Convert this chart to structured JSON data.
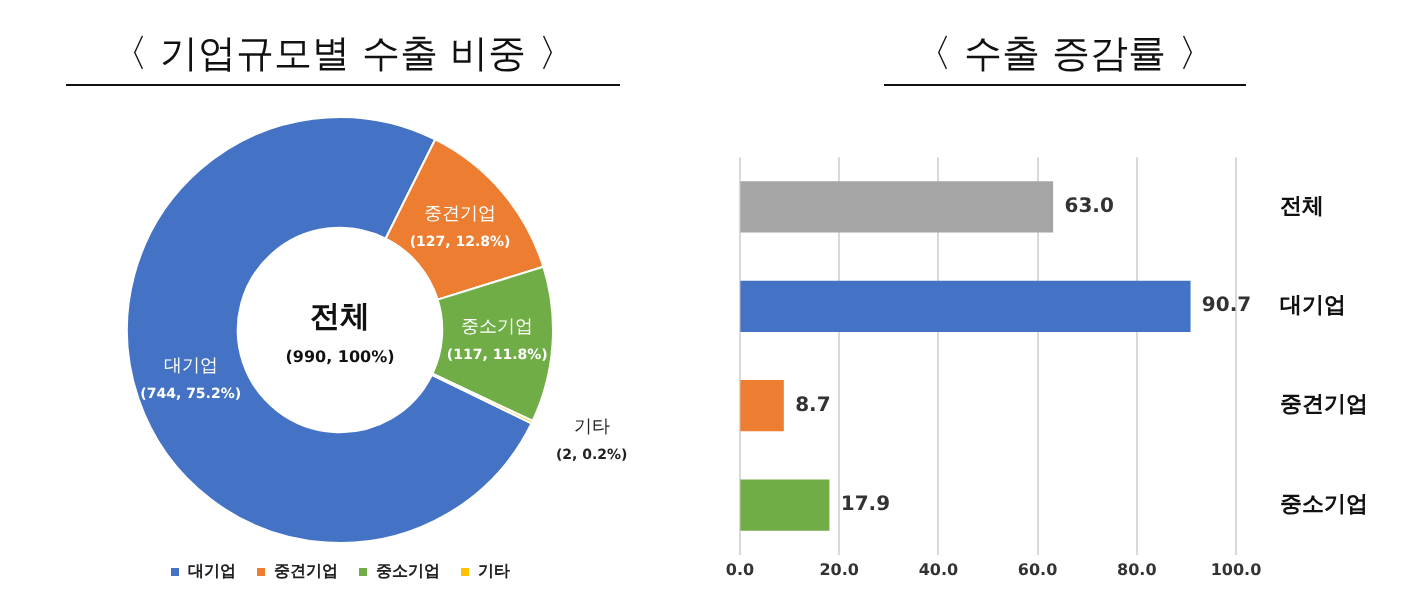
{
  "chart_data": [
    {
      "type": "donut",
      "title": "〈 기업규모별 수출 비중 〉",
      "categories": [
        "대기업",
        "중견기업",
        "중소기업",
        "기타"
      ],
      "values": [
        744,
        127,
        117,
        2
      ],
      "colors": [
        "#4472c4",
        "#ed7d31",
        "#70ad47",
        "#ffc000"
      ],
      "value_labels": [
        "(744, 75.2%)",
        "(127, 12.8%)",
        "(117, 11.8%)",
        "(2, 0.2%)"
      ],
      "annotations": [
        "전체",
        "(990, 100%)"
      ],
      "legend": "bottom"
    },
    {
      "type": "bar",
      "title": "〈 수출 증감률 〉",
      "orientation": "horizontal",
      "categories": [
        "전체",
        "대기업",
        "중견기업",
        "중소기업"
      ],
      "values": [
        63.0,
        90.7,
        8.7,
        17.9
      ],
      "colors": [
        "#a5a5a5",
        "#4472c4",
        "#ed7d31",
        "#70ad47"
      ],
      "value_labels": [
        "63.0",
        "90.7",
        "8.7",
        "17.9"
      ],
      "xlim": [
        0,
        100
      ],
      "xticks": [
        {
          "value": 0,
          "label": "0.0"
        },
        {
          "value": 20,
          "label": "20.0"
        },
        {
          "value": 40,
          "label": "40.0"
        },
        {
          "value": 60,
          "label": "60.0"
        },
        {
          "value": 80,
          "label": "80.0"
        },
        {
          "value": 100,
          "label": "100.0"
        }
      ],
      "grid": "x",
      "legend": false
    }
  ]
}
